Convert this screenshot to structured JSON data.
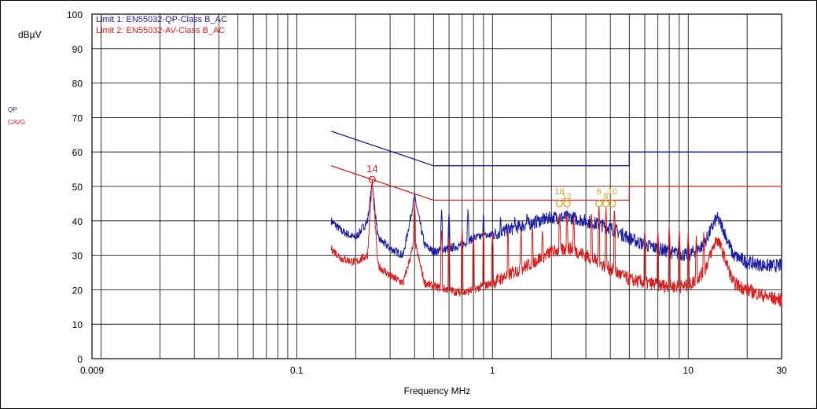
{
  "chart_data": {
    "type": "line",
    "ylabel": "dBµV",
    "xlabel": "Frequency MHz",
    "x_scale": "log",
    "xlim": [
      0.009,
      30
    ],
    "ylim": [
      0,
      100
    ],
    "y_ticks": [
      0,
      10,
      20,
      30,
      40,
      50,
      60,
      70,
      80,
      90,
      100
    ],
    "x_ticks": [
      {
        "value": 0.009,
        "label": "0.009"
      },
      {
        "value": 0.1,
        "label": "0.1"
      },
      {
        "value": 1,
        "label": "1"
      },
      {
        "value": 10,
        "label": "10"
      },
      {
        "value": 30,
        "label": "30"
      }
    ],
    "grid": true,
    "legend": [
      {
        "label": "Limit 1: EN55032-QP-Class B_AC",
        "color": "#1c1c9c"
      },
      {
        "label": "Limit 2: EN55032-AV-Class B_AC",
        "color": "#d42020"
      }
    ],
    "side_labels": [
      {
        "text": "QP",
        "color": "#1c1c9c"
      },
      {
        "text": "CAVG",
        "color": "#d42020"
      }
    ],
    "limit_lines": [
      {
        "name": "Limit 1: EN55032-QP-Class B_AC",
        "color": "#1c1c9c",
        "points": [
          [
            0.15,
            66
          ],
          [
            0.5,
            56
          ],
          [
            5,
            56
          ],
          [
            5,
            60
          ],
          [
            30,
            60
          ]
        ]
      },
      {
        "name": "Limit 2: EN55032-AV-Class B_AC",
        "color": "#d42020",
        "points": [
          [
            0.15,
            56
          ],
          [
            0.5,
            46
          ],
          [
            5,
            46
          ],
          [
            5,
            50
          ],
          [
            30,
            50
          ]
        ]
      }
    ],
    "series": [
      {
        "name": "QP",
        "color": "#1c1c9c",
        "points": [
          [
            0.15,
            40
          ],
          [
            0.17,
            37
          ],
          [
            0.2,
            35
          ],
          [
            0.23,
            40
          ],
          [
            0.243,
            51
          ],
          [
            0.26,
            35
          ],
          [
            0.3,
            32
          ],
          [
            0.35,
            30
          ],
          [
            0.4,
            47
          ],
          [
            0.45,
            33
          ],
          [
            0.5,
            31
          ],
          [
            0.6,
            32
          ],
          [
            0.7,
            33
          ],
          [
            0.8,
            35
          ],
          [
            1,
            36
          ],
          [
            1.5,
            39
          ],
          [
            2,
            41
          ],
          [
            2.5,
            41
          ],
          [
            3,
            40
          ],
          [
            4,
            38
          ],
          [
            5,
            35
          ],
          [
            6,
            33
          ],
          [
            8,
            31
          ],
          [
            10,
            30
          ],
          [
            12,
            33
          ],
          [
            14,
            41
          ],
          [
            15,
            38
          ],
          [
            17,
            30
          ],
          [
            20,
            28
          ],
          [
            25,
            27
          ],
          [
            30,
            27
          ]
        ],
        "spikes": [
          [
            0.243,
            52
          ],
          [
            0.4,
            47
          ],
          [
            0.55,
            44
          ],
          [
            0.6,
            43
          ],
          [
            0.75,
            44
          ],
          [
            0.9,
            43
          ],
          [
            1.1,
            42
          ],
          [
            1.3,
            42
          ],
          [
            1.5,
            43
          ],
          [
            1.7,
            42
          ],
          [
            2.0,
            43
          ],
          [
            2.2,
            42
          ],
          [
            2.5,
            43
          ],
          [
            3.0,
            41
          ],
          [
            3.5,
            40
          ],
          [
            4.0,
            39
          ],
          [
            4.5,
            38
          ],
          [
            6,
            37
          ],
          [
            7,
            37
          ],
          [
            8,
            37
          ],
          [
            9,
            37
          ]
        ]
      },
      {
        "name": "CAVG",
        "color": "#d42020",
        "points": [
          [
            0.15,
            32
          ],
          [
            0.17,
            29
          ],
          [
            0.2,
            28
          ],
          [
            0.23,
            30
          ],
          [
            0.243,
            52
          ],
          [
            0.26,
            27
          ],
          [
            0.3,
            24
          ],
          [
            0.35,
            22
          ],
          [
            0.4,
            34
          ],
          [
            0.45,
            22
          ],
          [
            0.5,
            21
          ],
          [
            0.6,
            20
          ],
          [
            0.7,
            19
          ],
          [
            0.8,
            20
          ],
          [
            1,
            22
          ],
          [
            1.5,
            27
          ],
          [
            2,
            31
          ],
          [
            2.5,
            32
          ],
          [
            3,
            30
          ],
          [
            4,
            26
          ],
          [
            5,
            23
          ],
          [
            6,
            22
          ],
          [
            8,
            21
          ],
          [
            10,
            21
          ],
          [
            12,
            25
          ],
          [
            14,
            35
          ],
          [
            15,
            31
          ],
          [
            17,
            22
          ],
          [
            20,
            20
          ],
          [
            25,
            18
          ],
          [
            30,
            17
          ]
        ],
        "spikes": [
          [
            0.243,
            52
          ],
          [
            0.4,
            46
          ],
          [
            0.55,
            38
          ],
          [
            0.6,
            36
          ],
          [
            0.7,
            38
          ],
          [
            0.8,
            36
          ],
          [
            0.9,
            38
          ],
          [
            1.0,
            37
          ],
          [
            1.2,
            38
          ],
          [
            1.4,
            38
          ],
          [
            1.6,
            39
          ],
          [
            1.8,
            38
          ],
          [
            2.2,
            43
          ],
          [
            2.4,
            43
          ],
          [
            2.6,
            42
          ],
          [
            3.2,
            43
          ],
          [
            3.5,
            45
          ],
          [
            3.8,
            44
          ],
          [
            4.2,
            44
          ],
          [
            6,
            38
          ],
          [
            7,
            38
          ],
          [
            8,
            39
          ],
          [
            9,
            38
          ],
          [
            10,
            37
          ],
          [
            11,
            36
          ],
          [
            12,
            37
          ]
        ]
      }
    ],
    "markers": [
      {
        "label": "14",
        "x": 0.243,
        "y": 52,
        "color": "#d42020"
      },
      {
        "label": "18",
        "x": 2.2,
        "y": 45,
        "color": "#e0a020"
      },
      {
        "label": "12",
        "x": 2.4,
        "y": 45,
        "color": "#e0a020"
      },
      {
        "label": "6",
        "x": 3.5,
        "y": 45,
        "color": "#e0a020"
      },
      {
        "label": "8",
        "x": 3.8,
        "y": 45,
        "color": "#e0a020"
      },
      {
        "label": "10",
        "x": 4.1,
        "y": 45,
        "color": "#e0a020"
      }
    ]
  }
}
